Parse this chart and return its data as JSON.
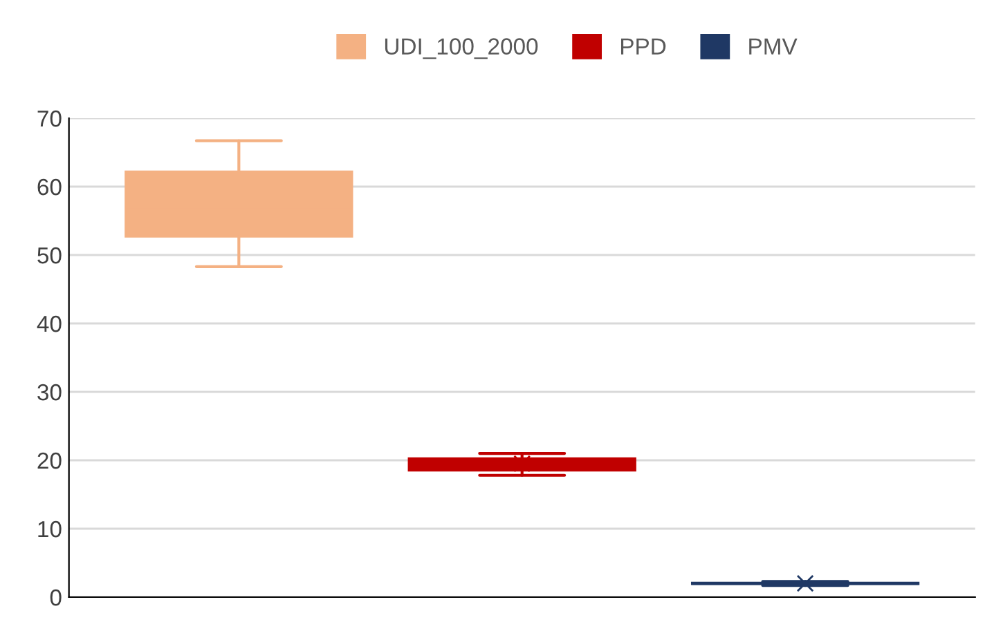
{
  "chart_data": {
    "type": "box",
    "categories": [
      null
    ],
    "series": [
      {
        "name": "UDI_100_2000",
        "color": "#f4b183",
        "boxes": [
          {
            "low": 48.3,
            "q1": 52.7,
            "median": 57,
            "q3": 62.2,
            "high": 66.7
          }
        ]
      },
      {
        "name": "PPD",
        "color": "#c00000",
        "boxes": [
          {
            "low": 17.8,
            "q1": 18.5,
            "median": 19.5,
            "q3": 20.3,
            "high": 21.0,
            "mean": 19.5
          }
        ]
      },
      {
        "name": "PMV",
        "color": "#1f3864",
        "boxes": [
          {
            "low": 1.7,
            "q1": 1.9,
            "median": 2.0,
            "q3": 2.1,
            "high": 2.3,
            "mean": 2.0
          }
        ]
      }
    ],
    "ylim": [
      0,
      70
    ],
    "yticks": [
      0,
      10,
      20,
      30,
      40,
      50,
      60,
      70
    ],
    "grid": "y",
    "legend": "top"
  }
}
